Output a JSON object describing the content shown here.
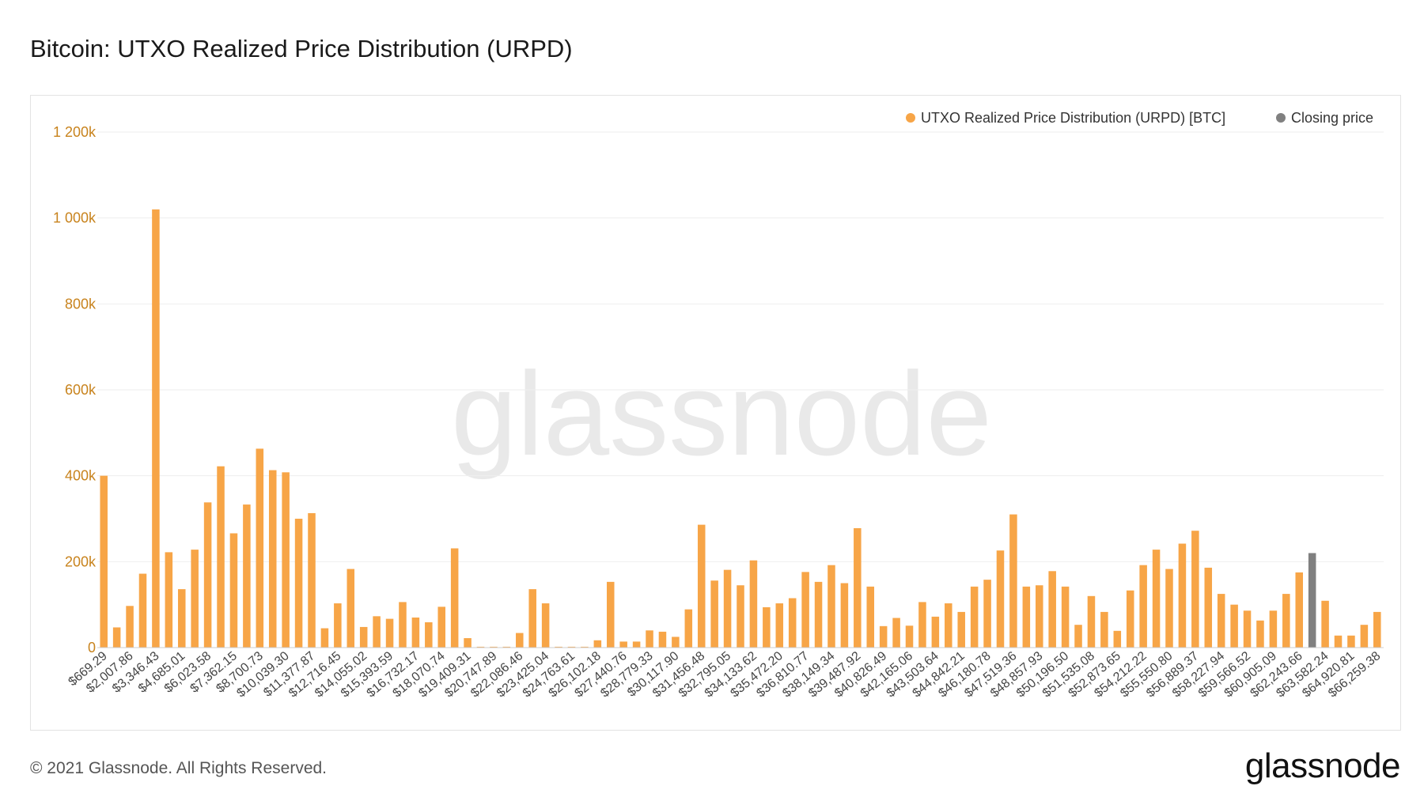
{
  "header": {
    "title": "Bitcoin: UTXO Realized Price Distribution (URPD)"
  },
  "footer": {
    "copyright": "© 2021 Glassnode. All Rights Reserved.",
    "logo": "glassnode"
  },
  "watermark": "glassnode",
  "colors": {
    "bar": "#f7a547",
    "closing": "#808080",
    "axis_label": "#c8831d"
  },
  "chart_data": {
    "type": "bar",
    "title": "Bitcoin: UTXO Realized Price Distribution (URPD)",
    "xlabel": "",
    "ylabel": "",
    "ylim": [
      0,
      1200000
    ],
    "yticks": [
      0,
      200000,
      400000,
      600000,
      800000,
      1000000,
      1200000
    ],
    "ytick_labels": [
      "0",
      "200k",
      "400k",
      "600k",
      "800k",
      "1 000k",
      "1 200k"
    ],
    "grid": true,
    "legend_position": "top-right",
    "legend": [
      {
        "name": "UTXO Realized Price Distribution (URPD) [BTC]",
        "color": "#f7a547"
      },
      {
        "name": "Closing price",
        "color": "#808080"
      }
    ],
    "xtick_labels": [
      "$669.29",
      "$2,007.86",
      "$3,346.43",
      "$4,685.01",
      "$6,023.58",
      "$7,362.15",
      "$8,700.73",
      "$10,039.30",
      "$11,377.87",
      "$12,716.45",
      "$14,055.02",
      "$15,393.59",
      "$16,732.17",
      "$18,070.74",
      "$19,409.31",
      "$20,747.89",
      "$22,086.46",
      "$23,425.04",
      "$24,763.61",
      "$26,102.18",
      "$27,440.76",
      "$28,779.33",
      "$30,117.90",
      "$31,456.48",
      "$32,795.05",
      "$34,133.62",
      "$35,472.20",
      "$36,810.77",
      "$38,149.34",
      "$39,487.92",
      "$40,826.49",
      "$42,165.06",
      "$43,503.64",
      "$44,842.21",
      "$46,180.78",
      "$47,519.36",
      "$48,857.93",
      "$50,196.50",
      "$51,535.08",
      "$52,873.65",
      "$54,212.22",
      "$55,550.80",
      "$56,889.37",
      "$58,227.94",
      "$59,566.52",
      "$60,905.09",
      "$62,243.66",
      "$63,582.24",
      "$64,920.81",
      "$66,259.38"
    ],
    "closing_price_index": 93,
    "values": [
      400000,
      47000,
      97000,
      172000,
      1020000,
      222000,
      136000,
      228000,
      338000,
      422000,
      266000,
      333000,
      463000,
      413000,
      408000,
      300000,
      313000,
      45000,
      103000,
      183000,
      48000,
      73000,
      67000,
      106000,
      70000,
      59000,
      95000,
      231000,
      22000,
      2000,
      2000,
      2000,
      34000,
      136000,
      103000,
      2000,
      2000,
      2000,
      17000,
      153000,
      14000,
      14000,
      40000,
      37000,
      25000,
      89000,
      286000,
      156000,
      181000,
      145000,
      203000,
      94000,
      103000,
      115000,
      176000,
      153000,
      192000,
      150000,
      278000,
      142000,
      50000,
      69000,
      51000,
      106000,
      72000,
      103000,
      83000,
      142000,
      158000,
      226000,
      310000,
      142000,
      145000,
      178000,
      142000,
      53000,
      120000,
      83000,
      39000,
      133000,
      192000,
      228000,
      183000,
      242000,
      272000,
      186000,
      125000,
      100000,
      86000,
      63000,
      86000,
      125000,
      175000,
      220000,
      109000,
      28000,
      28000,
      53000,
      83000
    ]
  }
}
